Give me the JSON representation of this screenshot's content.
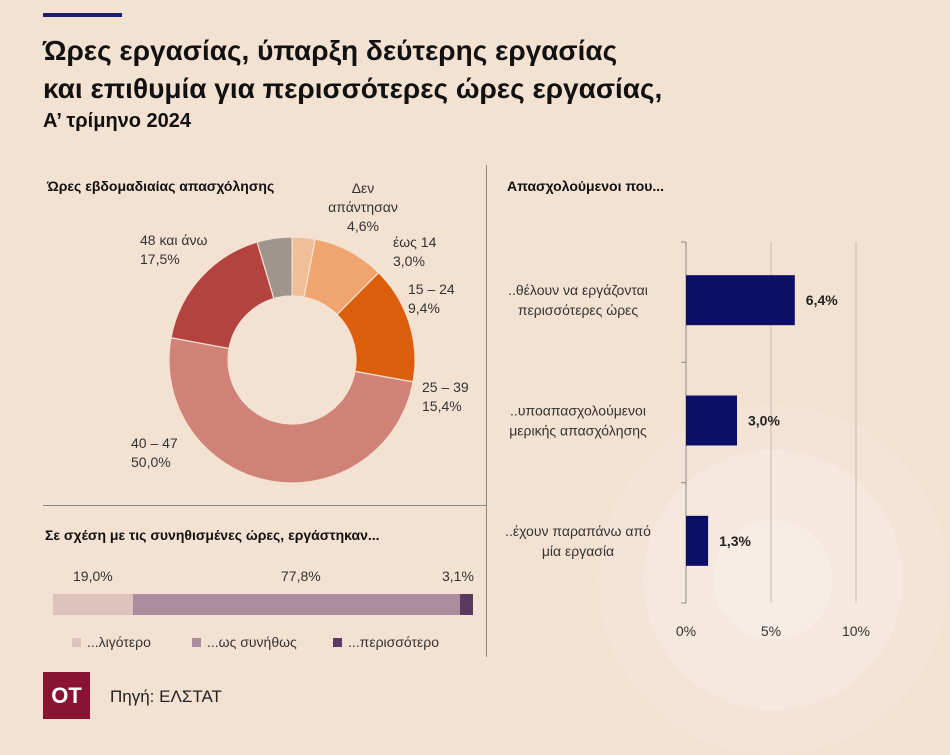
{
  "header": {
    "title_line1": "Ώρες εργασίας, ύπαρξη δεύτερης εργασίας",
    "title_line2": "και επιθυμία για περισσότερες ώρες εργασίας,",
    "subtitle": "Α’ τρίμηνο 2024"
  },
  "donut_section": {
    "title": "Ώρες εβδομαδιαίας απασχόλησης"
  },
  "stacked_section": {
    "title": "Σε σχέση με τις συνηθισμένες ώρες, εργάστηκαν..."
  },
  "bars_section": {
    "title": "Απασχολούμενοι που..."
  },
  "footer": {
    "logo": "ΟΤ",
    "source": "Πηγή: ΕΛΣΤΑΤ"
  },
  "chart_data": [
    {
      "type": "pie",
      "title": "Ώρες εβδομαδιαίας απασχόλησης",
      "slices": [
        {
          "name": "Δεν απάντησαν",
          "value": 4.6,
          "label": "4,6%",
          "color": "#9e958c"
        },
        {
          "name": "έως 14",
          "value": 3.0,
          "label": "3,0%",
          "color": "#f2be98"
        },
        {
          "name": "15 – 24",
          "value": 9.4,
          "label": "9,4%",
          "color": "#f0a56e"
        },
        {
          "name": "25 – 39",
          "value": 15.4,
          "label": "15,4%",
          "color": "#dc5e0c"
        },
        {
          "name": "40 – 47",
          "value": 50.0,
          "label": "50,0%",
          "color": "#cf8275"
        },
        {
          "name": "48 και άνω",
          "value": 17.5,
          "label": "17,5%",
          "color": "#b44340"
        }
      ]
    },
    {
      "type": "bar",
      "orientation": "horizontal-stacked",
      "title": "Σε σχέση με τις συνηθισμένες ώρες, εργάστηκαν...",
      "series": [
        {
          "name": "...λιγότερο",
          "value": 19.0,
          "label": "19,0%",
          "color": "#dcc3bc"
        },
        {
          "name": "...ως συνήθως",
          "value": 77.8,
          "label": "77,8%",
          "color": "#aa8d9f"
        },
        {
          "name": "...περισσότερο",
          "value": 3.1,
          "label": "3,1%",
          "color": "#5b3a61"
        }
      ],
      "legend": "bottom"
    },
    {
      "type": "bar",
      "orientation": "horizontal",
      "title": "Απασχολούμενοι που...",
      "categories": [
        [
          "..θέλουν να εργάζονται",
          "περισσότερες ώρες"
        ],
        [
          "..υποαπασχολούμενοι",
          "μερικής απασχόλησης"
        ],
        [
          "..έχουν παραπάνω από",
          "μία εργασία"
        ]
      ],
      "values": [
        6.4,
        3.0,
        1.3
      ],
      "labels": [
        "6,4%",
        "3,0%",
        "1,3%"
      ],
      "color": "#0c0f66",
      "xlim": [
        0,
        10
      ],
      "xticks": [
        0,
        5,
        10
      ],
      "xtick_labels": [
        "0%",
        "5%",
        "10%"
      ],
      "grid": true
    }
  ]
}
